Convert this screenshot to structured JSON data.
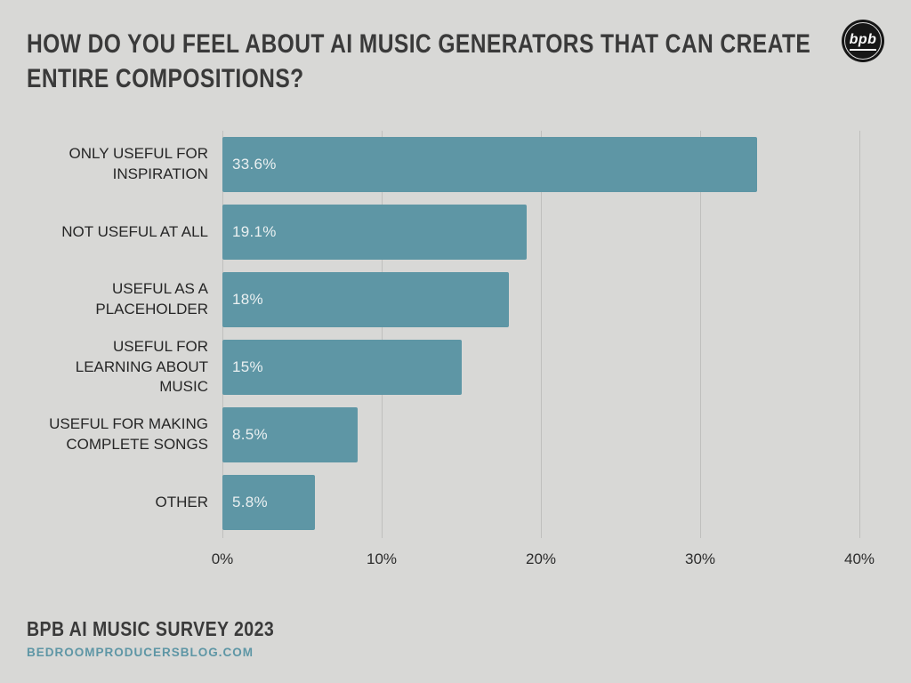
{
  "header": {
    "title": "HOW DO YOU FEEL ABOUT AI MUSIC GENERATORS THAT CAN CREATE ENTIRE COMPOSITIONS?",
    "logo_text": "bpb"
  },
  "chart_data": {
    "type": "bar",
    "orientation": "horizontal",
    "categories": [
      "ONLY USEFUL FOR INSPIRATION",
      "NOT USEFUL AT ALL",
      "USEFUL AS A PLACEHOLDER",
      "USEFUL FOR LEARNING ABOUT MUSIC",
      "USEFUL FOR MAKING COMPLETE SONGS",
      "OTHER"
    ],
    "values": [
      33.6,
      19.1,
      18,
      15,
      8.5,
      5.8
    ],
    "value_labels": [
      "33.6%",
      "19.1%",
      "18%",
      "15%",
      "8.5%",
      "5.8%"
    ],
    "x_ticks": [
      "0%",
      "10%",
      "20%",
      "30%",
      "40%"
    ],
    "xlim": [
      0,
      40
    ],
    "grid": true,
    "legend": false,
    "bar_color": "#5e96a5",
    "value_label_color": "#eaf0f1"
  },
  "footer": {
    "survey": "BPB AI MUSIC SURVEY 2023",
    "website": "BEDROOMPRODUCERSBLOG.COM"
  },
  "colors": {
    "background": "#d8d8d6",
    "accent_teal": "#5e96a5",
    "title_text": "#3a3a3a",
    "gridline": "#bfbfbd"
  }
}
